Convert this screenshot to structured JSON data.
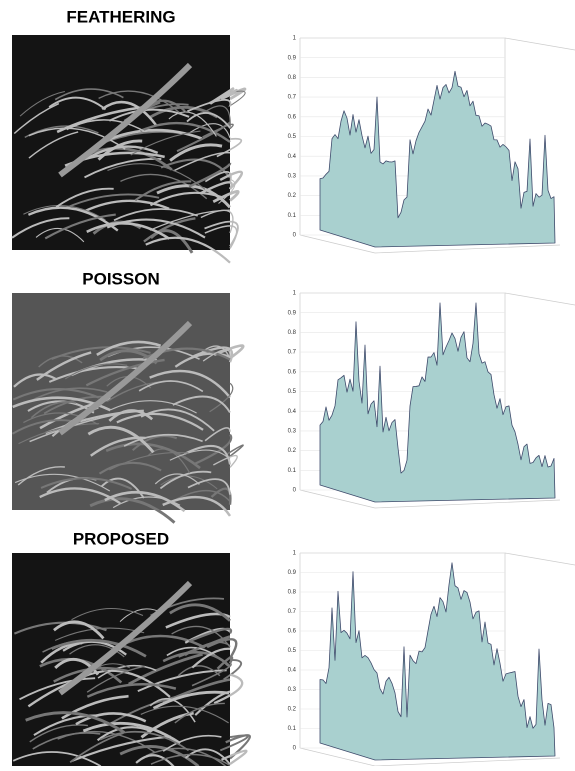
{
  "panels": [
    {
      "title": "FEATHERING",
      "zticks": [
        0,
        0.1,
        0.2,
        0.3,
        0.4,
        0.5,
        0.6,
        0.7,
        0.8,
        0.9,
        1
      ]
    },
    {
      "title": "POISSON",
      "zticks": [
        0,
        0.1,
        0.2,
        0.3,
        0.4,
        0.5,
        0.6,
        0.7,
        0.8,
        0.9,
        1
      ]
    },
    {
      "title": "PROPOSED",
      "zticks": [
        0,
        0.1,
        0.2,
        0.3,
        0.4,
        0.5,
        0.6,
        0.7,
        0.8,
        0.9,
        1
      ]
    }
  ]
}
